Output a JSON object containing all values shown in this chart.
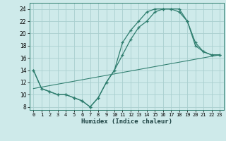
{
  "title": "",
  "xlabel": "Humidex (Indice chaleur)",
  "ylabel": "",
  "bg_color": "#ceeaea",
  "grid_color": "#aacfcf",
  "line_color": "#2e7d6e",
  "xlim": [
    -0.5,
    23.5
  ],
  "ylim": [
    7.5,
    25.0
  ],
  "xticks": [
    0,
    1,
    2,
    3,
    4,
    5,
    6,
    7,
    8,
    9,
    10,
    11,
    12,
    13,
    14,
    15,
    16,
    17,
    18,
    19,
    20,
    21,
    22,
    23
  ],
  "yticks": [
    8,
    10,
    12,
    14,
    16,
    18,
    20,
    22,
    24
  ],
  "line1_x": [
    0,
    1,
    2,
    3,
    4,
    5,
    6,
    7,
    8,
    9,
    10,
    11,
    12,
    13,
    14,
    15,
    16,
    17,
    18,
    19,
    20,
    21,
    22,
    23
  ],
  "line1_y": [
    14,
    11,
    10.5,
    10,
    10,
    9.5,
    9,
    8,
    9.5,
    12,
    14,
    18.5,
    20.5,
    22,
    23.5,
    24,
    24,
    24,
    23.5,
    22,
    18.5,
    17,
    16.5,
    16.5
  ],
  "line2_x": [
    0,
    1,
    2,
    3,
    4,
    5,
    6,
    7,
    8,
    9,
    10,
    11,
    12,
    13,
    14,
    15,
    16,
    17,
    18,
    19,
    20,
    21,
    22,
    23
  ],
  "line2_y": [
    14,
    11,
    10.5,
    10,
    10,
    9.5,
    9,
    8,
    9.5,
    12,
    14,
    16.5,
    19,
    21,
    22,
    23.5,
    24,
    24,
    24,
    22,
    18,
    17,
    16.5,
    16.5
  ],
  "line3_x": [
    0,
    23
  ],
  "line3_y": [
    11,
    16.5
  ]
}
